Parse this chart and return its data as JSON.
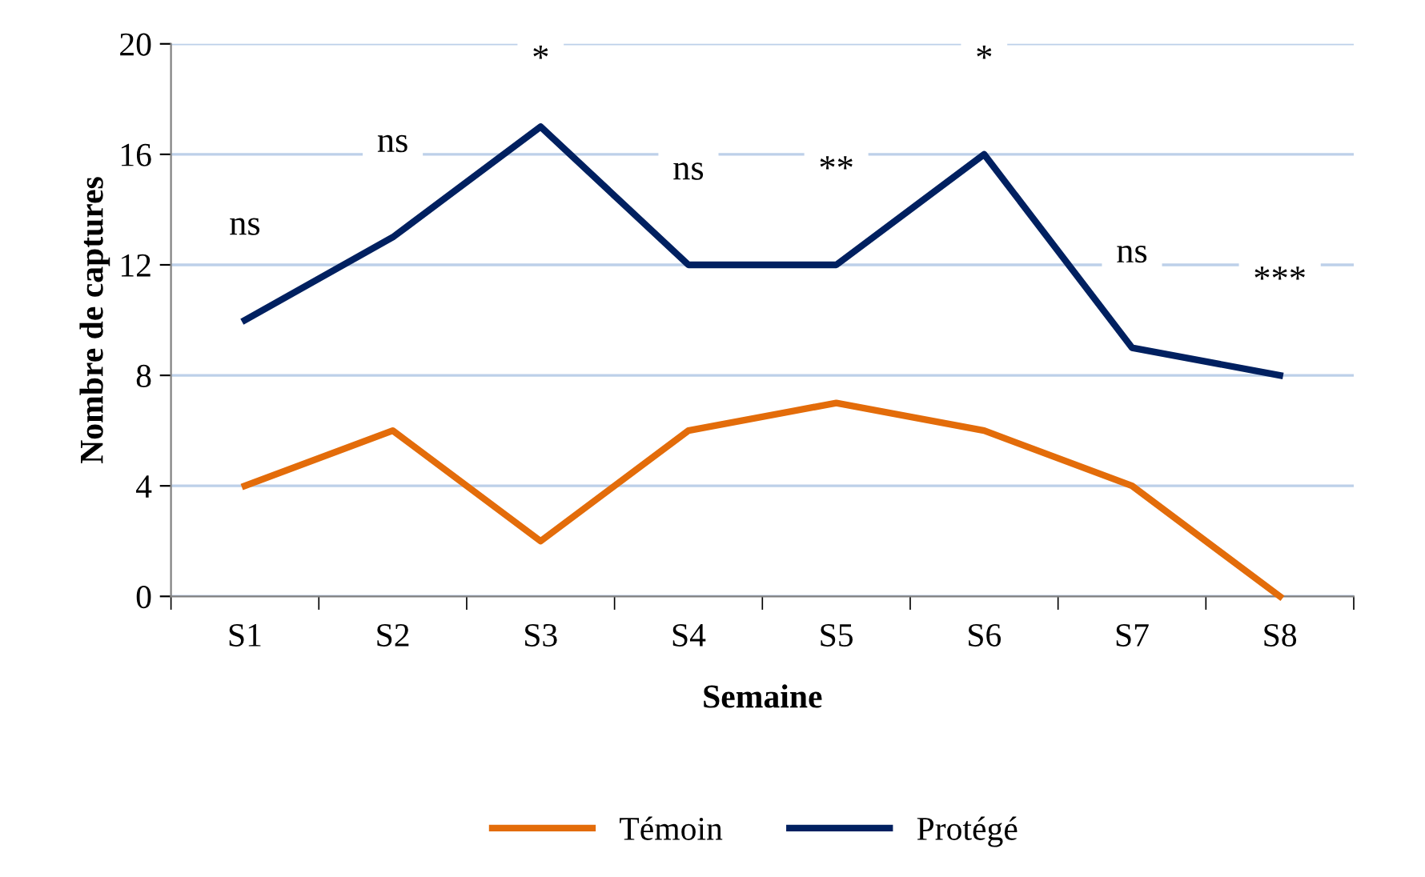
{
  "chart_data": {
    "type": "line",
    "xlabel": "Semaine",
    "ylabel": "Nombre de captures",
    "categories": [
      "S1",
      "S2",
      "S3",
      "S4",
      "S5",
      "S6",
      "S7",
      "S8"
    ],
    "series": [
      {
        "name": "Témoin",
        "color": "#e36c0a",
        "values": [
          4,
          6,
          2,
          6,
          7,
          6,
          4,
          0
        ]
      },
      {
        "name": "Protégé",
        "color": "#002060",
        "values": [
          10,
          13,
          17,
          12,
          12,
          16,
          9,
          8
        ]
      }
    ],
    "ylim": [
      0,
      20
    ],
    "yticks": [
      0,
      4,
      8,
      12,
      16,
      20
    ],
    "grid": "y",
    "legend": "bottom",
    "marker": "none",
    "line_style": "solid",
    "annotations": [
      "ns",
      "ns",
      "*",
      "ns",
      "**",
      "*",
      "ns",
      "***"
    ]
  }
}
